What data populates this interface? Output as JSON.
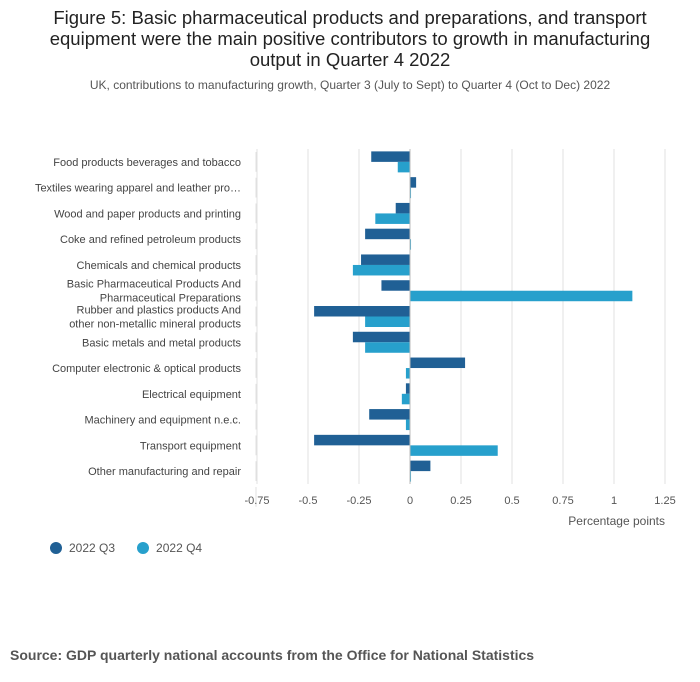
{
  "title_line1": "Figure 5: Basic pharmaceutical products and preparations, and transport",
  "title_line2": "equipment were the main positive contributors to growth in manufacturing",
  "title_line3": "output in Quarter 4 2022",
  "subtitle": "UK, contributions to manufacturing growth, Quarter 3 (July to Sept) to Quarter 4 (Oct to Dec) 2022",
  "source": "Source: GDP quarterly national accounts from the Office for National Statistics",
  "colors": {
    "q3": "#206095",
    "q4": "#27a0cc",
    "grid": "#e0e0e0",
    "axis": "#bbbbbb"
  },
  "chart_data": {
    "type": "bar",
    "orientation": "horizontal",
    "categories": [
      [
        "Food products beverages and tobacco"
      ],
      [
        "Textiles wearing apparel and leather pro…"
      ],
      [
        "Wood and paper products and printing"
      ],
      [
        "Coke and refined petroleum products"
      ],
      [
        "Chemicals and chemical products"
      ],
      [
        "Basic Pharmaceutical Products And",
        "Pharmaceutical Preparations"
      ],
      [
        "Rubber and plastics products And",
        "other non-metallic mineral products"
      ],
      [
        "Basic metals and metal products"
      ],
      [
        "Computer electronic & optical products"
      ],
      [
        "Electrical equipment"
      ],
      [
        "Machinery and equipment n.e.c."
      ],
      [
        "Transport equipment"
      ],
      [
        "Other manufacturing and repair"
      ]
    ],
    "series": [
      {
        "name": "2022 Q3",
        "color": "#206095",
        "values": [
          -0.19,
          0.03,
          -0.07,
          -0.22,
          -0.24,
          -0.14,
          -0.47,
          -0.28,
          0.27,
          -0.02,
          -0.2,
          -0.47,
          0.1
        ]
      },
      {
        "name": "2022 Q4",
        "color": "#27a0cc",
        "values": [
          -0.06,
          0.005,
          -0.17,
          0.005,
          -0.28,
          1.09,
          -0.22,
          -0.22,
          -0.02,
          -0.04,
          -0.02,
          0.43,
          0.005
        ]
      }
    ],
    "xlabel": "Percentage points",
    "xlim": [
      -0.75,
      1.25
    ],
    "xticks": [
      -0.75,
      -0.5,
      -0.25,
      0,
      0.25,
      0.5,
      0.75,
      1,
      1.25
    ],
    "xtick_labels": [
      "-0.75",
      "-0.5",
      "-0.25",
      "0",
      "0.25",
      "0.5",
      "0.75",
      "1",
      "1.25"
    ],
    "grid": true,
    "legend_position": "bottom-left"
  }
}
